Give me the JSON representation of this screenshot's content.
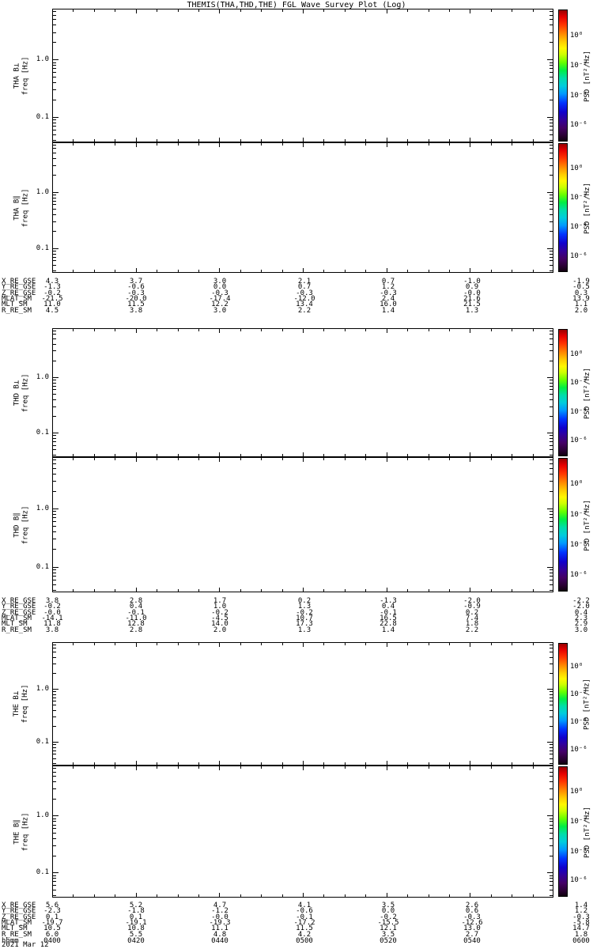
{
  "title": "THEMIS(THA,THD,THE) FGL Wave Survey Plot (Log)",
  "chart_data": {
    "type": "heatmap",
    "subtype": "multi-panel wave spectrogram; all six panels are blank (no PSD values rendered)",
    "panels": [
      "THA B⊥",
      "THA B∥",
      "THD B⊥",
      "THD B∥",
      "THE B⊥",
      "THE B∥"
    ],
    "values": [],
    "x_axis": {
      "label": "hhmm",
      "ticks": [
        "0400",
        "0420",
        "0440",
        "0500",
        "0520",
        "0540",
        "0600"
      ],
      "date": "2021 Mar 12"
    },
    "y_axis": {
      "label": "freq [Hz]",
      "scale": "log",
      "ticks": [
        1.0,
        0.1
      ],
      "tick_labels": [
        "1.0",
        "0.1"
      ]
    },
    "colorbar": {
      "label": "PSD [nT²/Hz]",
      "ticks": [
        "10⁰",
        "10⁻²",
        "10⁻⁴",
        "10⁻⁶"
      ],
      "colors_top_to_bottom": [
        "#cc0000",
        "#ff6600",
        "#ffee00",
        "#55ee00",
        "#00cccc",
        "#0044ff",
        "#2a0066",
        "#140014"
      ]
    },
    "ephemeris": {
      "row_labels": [
        "X_RE_GSE",
        "Y_RE_GSE",
        "Z_RE_GSE",
        "MLAT_SM",
        "MLT_SM",
        "R_RE_SM"
      ],
      "blocks": [
        {
          "probe": "THA",
          "rows": [
            [
              "4.3",
              "3.7",
              "3.0",
              "2.1",
              "0.7",
              "-1.0",
              "-1.9"
            ],
            [
              "-1.3",
              "-0.6",
              "0.0",
              "0.7",
              "1.2",
              "0.9",
              "-0.5"
            ],
            [
              "-0.2",
              "-0.3",
              "-0.3",
              "-0.3",
              "-0.3",
              "-0.0",
              "0.3"
            ],
            [
              "-21.5",
              "-20.0",
              "-17.4",
              "-12.0",
              "2.4",
              "21.6",
              "13.9"
            ],
            [
              "11.0",
              "11.5",
              "12.2",
              "13.4",
              "16.0",
              "21.5",
              "1.1"
            ],
            [
              "4.5",
              "3.8",
              "3.0",
              "2.2",
              "1.4",
              "1.3",
              "2.0"
            ]
          ]
        },
        {
          "probe": "THD",
          "rows": [
            [
              "3.8",
              "2.8",
              "1.7",
              "0.2",
              "-1.3",
              "-2.0",
              "-2.2"
            ],
            [
              "-0.2",
              "0.4",
              "1.0",
              "1.3",
              "0.4",
              "-0.9",
              "-2.0"
            ],
            [
              "-0.0",
              "-0.1",
              "-0.2",
              "-0.2",
              "-0.1",
              "0.2",
              "0.4"
            ],
            [
              "-14.1",
              "-11.0",
              "-4.5",
              "10.7",
              "16.5",
              "7.4",
              "2.3"
            ],
            [
              "11.8",
              "12.8",
              "14.0",
              "17.3",
              "22.8",
              "1.8",
              "2.9"
            ],
            [
              "3.8",
              "2.8",
              "2.0",
              "1.3",
              "1.4",
              "2.2",
              "3.0"
            ]
          ]
        },
        {
          "probe": "THE",
          "rows": [
            [
              "5.6",
              "5.2",
              "4.7",
              "4.1",
              "3.5",
              "2.6",
              "1.4"
            ],
            [
              "-2.3",
              "-1.8",
              "-1.2",
              "-0.6",
              "0.0",
              "0.6",
              "1.2"
            ],
            [
              "0.1",
              "0.1",
              "-0.0",
              "-0.1",
              "-0.2",
              "-0.3",
              "-0.3"
            ],
            [
              "-19.7",
              "-19.1",
              "-19.3",
              "-17.2",
              "-15.5",
              "-12.6",
              "-5.8"
            ],
            [
              "10.5",
              "10.8",
              "11.1",
              "11.5",
              "12.1",
              "13.0",
              "14.7"
            ],
            [
              "6.0",
              "5.5",
              "4.8",
              "4.2",
              "3.5",
              "2.7",
              "1.8"
            ]
          ]
        }
      ]
    }
  }
}
